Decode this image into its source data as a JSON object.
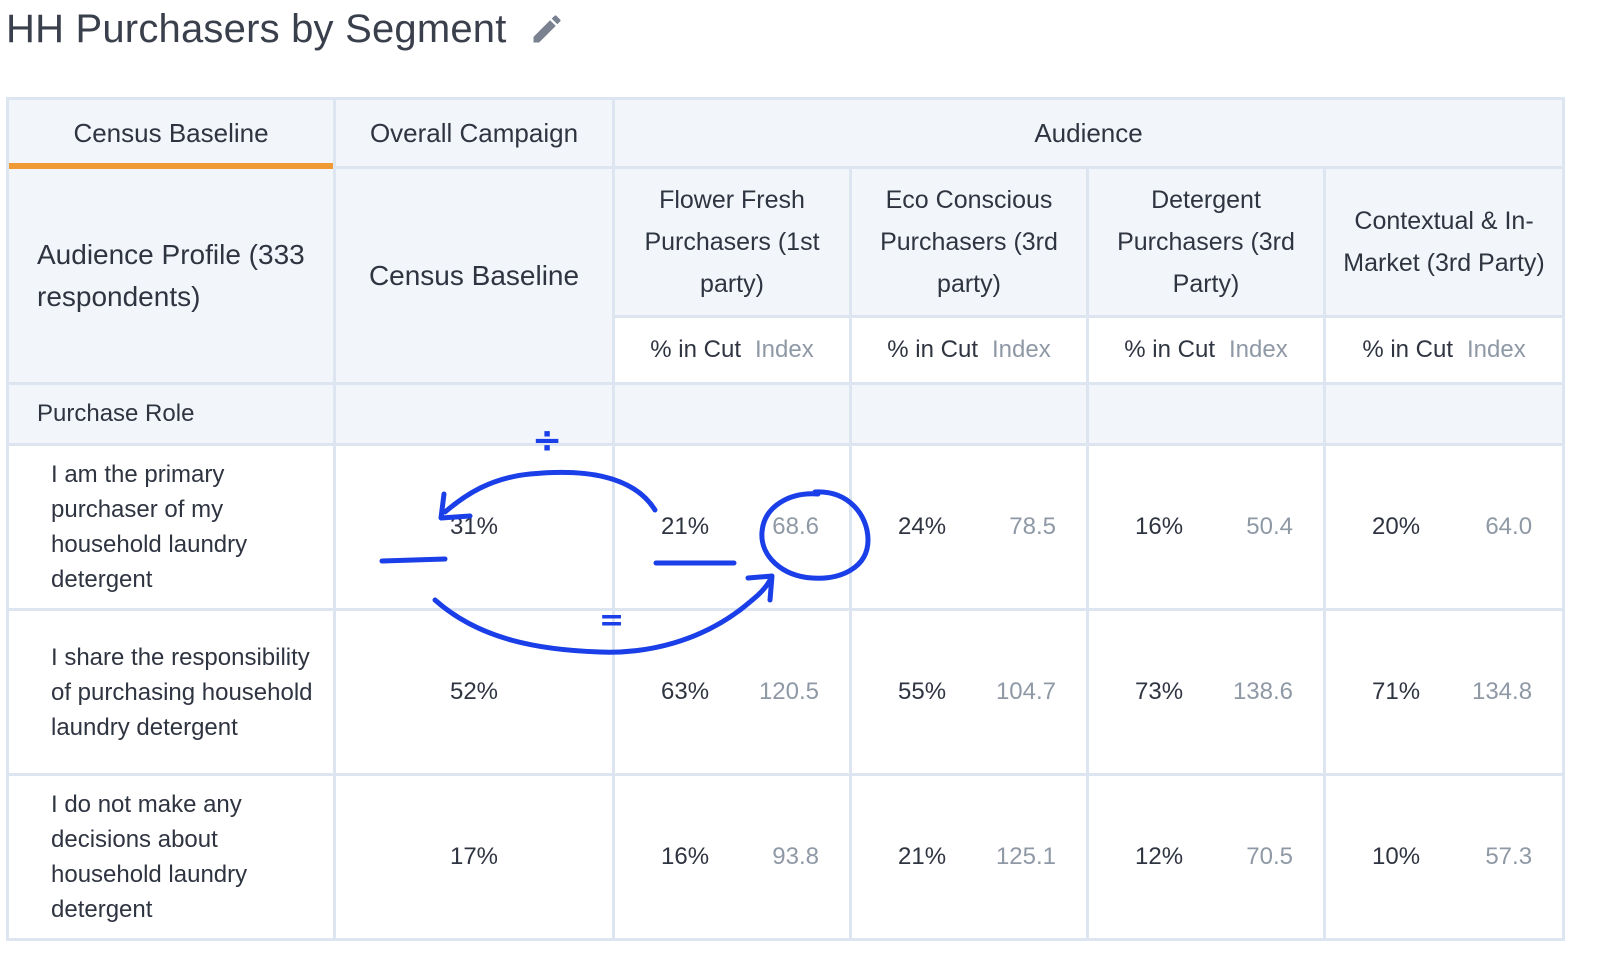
{
  "page": {
    "title": "HH Purchasers by Segment"
  },
  "tabs": [
    {
      "label": "Census Baseline",
      "active": true
    },
    {
      "label": "Overall Campaign",
      "active": false
    }
  ],
  "audience_header": "Audience",
  "profile_header": "Audience Profile (333 respondents)",
  "baseline_header": "Census Baseline",
  "segments": [
    {
      "name": "Flower Fresh Purchasers (1st party)"
    },
    {
      "name": "Eco Conscious Purchasers (3rd party)"
    },
    {
      "name": "Detergent Purchasers (3rd Party)"
    },
    {
      "name": "Contextual & In-Market (3rd Party)"
    }
  ],
  "sub_labels": {
    "pct": "% in Cut",
    "index": "Index"
  },
  "section": "Purchase Role",
  "rows": [
    {
      "label": "I am the primary purchaser of my household laundry detergent",
      "baseline": "31%",
      "cells": [
        {
          "pct": "21%",
          "index": "68.6"
        },
        {
          "pct": "24%",
          "index": "78.5"
        },
        {
          "pct": "16%",
          "index": "50.4"
        },
        {
          "pct": "20%",
          "index": "64.0"
        }
      ]
    },
    {
      "label": "I share the responsibility of purchasing household laundry detergent",
      "baseline": "52%",
      "cells": [
        {
          "pct": "63%",
          "index": "120.5"
        },
        {
          "pct": "55%",
          "index": "104.7"
        },
        {
          "pct": "73%",
          "index": "138.6"
        },
        {
          "pct": "71%",
          "index": "134.8"
        }
      ]
    },
    {
      "label": "I do not make any decisions about household laundry detergent",
      "baseline": "17%",
      "cells": [
        {
          "pct": "16%",
          "index": "93.8"
        },
        {
          "pct": "21%",
          "index": "125.1"
        },
        {
          "pct": "12%",
          "index": "70.5"
        },
        {
          "pct": "10%",
          "index": "57.3"
        }
      ]
    }
  ],
  "annotation": {
    "divide_symbol": "÷",
    "equals_symbol": "=",
    "color": "#1a3ee8"
  },
  "colors": {
    "accent": "#ef9a35",
    "border": "#dde6f0",
    "header_bg": "#f2f6fa",
    "muted": "#8f99a6"
  }
}
